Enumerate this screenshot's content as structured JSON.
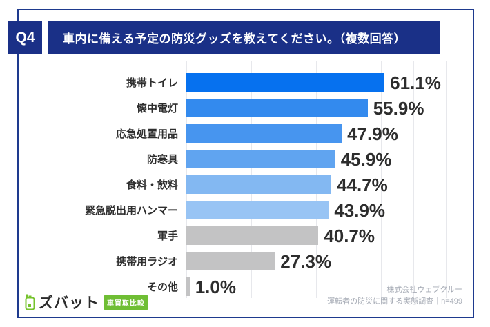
{
  "header": {
    "question_number": "Q4",
    "question_text": "車内に備える予定の防災グッズを教えてください。（複数回答）"
  },
  "chart_data": {
    "type": "bar",
    "orientation": "horizontal",
    "title": "車内に備える予定の防災グッズを教えてください。（複数回答）",
    "categories": [
      "携帯トイレ",
      "懐中電灯",
      "応急処置用品",
      "防寒具",
      "食料・飲料",
      "緊急脱出用ハンマー",
      "軍手",
      "携帯用ラジオ",
      "その他"
    ],
    "values": [
      61.1,
      55.9,
      47.9,
      45.9,
      44.7,
      43.9,
      40.7,
      27.3,
      1.0
    ],
    "value_labels": [
      "61.1%",
      "55.9%",
      "47.9%",
      "45.9%",
      "44.7%",
      "43.9%",
      "40.7%",
      "27.3%",
      "1.0%"
    ],
    "bar_colors": [
      "#0671ef",
      "#338aee",
      "#4795ef",
      "#60a4f0",
      "#83b8f2",
      "#98c4f4",
      "#c3c3c4",
      "#c3c3c4",
      "#c3c3c4"
    ],
    "xlim": [
      0,
      80
    ],
    "grid": true,
    "gridline_interval_percent": 10,
    "legend": false
  },
  "footer": {
    "logo": {
      "icon": "zubat-phone-icon",
      "brand": "ズバット",
      "badge": "車買取比較"
    },
    "credit_line1": "株式会社ウェブクルー",
    "credit_line2": "運転者の防災に関する実態調査｜n=499"
  },
  "colors": {
    "navy": "#1a3087",
    "frame_border": "#1e3a8e",
    "gridline": "#e7e8ec",
    "text_dark": "#2d2d2d",
    "credit_gray": "#a6abb5",
    "logo_green": "#6fbe34"
  }
}
